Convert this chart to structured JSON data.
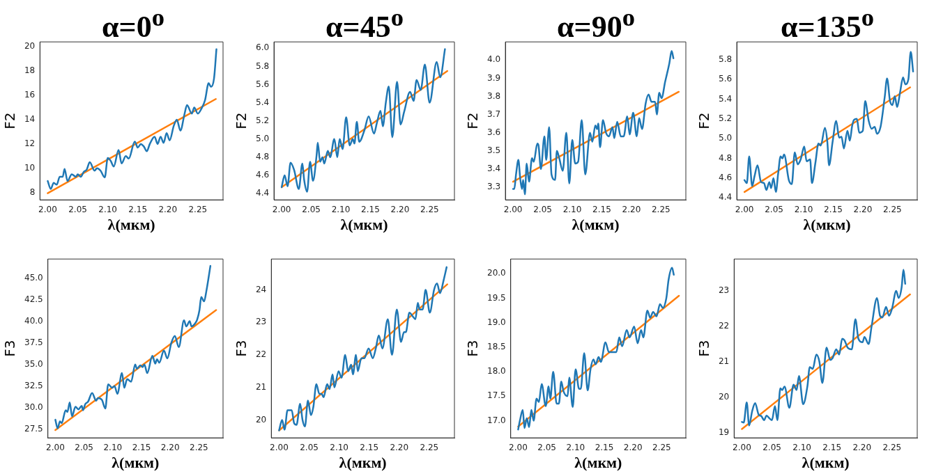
{
  "chart_data": [
    {
      "type": "line",
      "title": "α=0$^{o}$",
      "xlabel": "λ(мкм)",
      "ylabel": "F2",
      "marker": "none",
      "line_style": "solid",
      "xlim": [
        1.987,
        2.292
      ],
      "xticks": [
        {
          "value": 2,
          "label": "2.00"
        },
        {
          "value": 2.05,
          "label": "2.05"
        },
        {
          "value": 2.1,
          "label": "2.10"
        },
        {
          "value": 2.15,
          "label": "2.15"
        },
        {
          "value": 2.2,
          "label": "2.20"
        },
        {
          "value": 2.25,
          "label": "2.25"
        }
      ],
      "ylim": [
        7.4,
        20.4
      ],
      "yticks": [
        8,
        10,
        12,
        14,
        16,
        18,
        20
      ],
      "series": [
        {
          "color": "#1f77b4",
          "x": [
            2.0,
            2.005,
            2.01,
            2.015,
            2.02,
            2.025,
            2.028,
            2.033,
            2.04,
            2.047,
            2.05,
            2.055,
            2.06,
            2.065,
            2.07,
            2.078,
            2.082,
            2.088,
            2.095,
            2.1,
            2.105,
            2.11,
            2.118,
            2.123,
            2.13,
            2.135,
            2.145,
            2.15,
            2.155,
            2.16,
            2.165,
            2.17,
            2.178,
            2.183,
            2.188,
            2.193,
            2.198,
            2.203,
            2.21,
            2.215,
            2.221,
            2.228,
            2.232,
            2.24,
            2.244,
            2.25,
            2.256,
            2.262,
            2.268,
            2.272,
            2.277,
            2.281
          ],
          "values": [
            8.95,
            8.3,
            8.8,
            8.65,
            9.3,
            9.3,
            9.95,
            8.95,
            9.5,
            9.3,
            9.5,
            9.3,
            9.7,
            9.9,
            10.5,
            9.8,
            10.0,
            9.8,
            9.25,
            10.85,
            10.6,
            10.15,
            11.5,
            10.4,
            11.0,
            10.8,
            12.2,
            11.7,
            12.0,
            11.8,
            11.4,
            12.0,
            12.6,
            12.0,
            12.6,
            12.1,
            12.9,
            12.3,
            13.5,
            14.0,
            13.1,
            14.5,
            15.2,
            14.5,
            15.0,
            14.5,
            14.9,
            15.6,
            17.0,
            16.7,
            17.4,
            19.8
          ]
        },
        {
          "color": "#ff7f0e",
          "x": [
            2.0,
            2.28
          ],
          "values": [
            7.95,
            15.7
          ]
        }
      ]
    },
    {
      "type": "line",
      "title": "α=45$^{o}$",
      "xlabel": "λ(мкм)",
      "ylabel": "F2",
      "marker": "none",
      "line_style": "solid",
      "xlim": [
        1.987,
        2.292
      ],
      "xticks": [
        {
          "value": 2,
          "label": "2.00"
        },
        {
          "value": 2.05,
          "label": "2.05"
        },
        {
          "value": 2.1,
          "label": "2.10"
        },
        {
          "value": 2.15,
          "label": "2.15"
        },
        {
          "value": 2.2,
          "label": "2.20"
        },
        {
          "value": 2.25,
          "label": "2.25"
        }
      ],
      "ylim": [
        4.33,
        6.07
      ],
      "yticks": [
        4.4,
        4.6,
        4.8,
        {
          "value": 5,
          "label": "5.0"
        },
        5.2,
        5.4,
        5.6,
        5.8,
        {
          "value": 6,
          "label": "6.0"
        }
      ],
      "series": [
        {
          "color": "#1f77b4",
          "x": [
            2.0,
            2.005,
            2.01,
            2.015,
            2.021,
            2.029,
            2.035,
            2.038,
            2.043,
            2.048,
            2.053,
            2.059,
            2.061,
            2.065,
            2.069,
            2.072,
            2.078,
            2.082,
            2.089,
            2.094,
            2.098,
            2.103,
            2.109,
            2.115,
            2.12,
            2.123,
            2.127,
            2.131,
            2.14,
            2.147,
            2.156,
            2.161,
            2.167,
            2.171,
            2.176,
            2.181,
            2.187,
            2.195,
            2.201,
            2.207,
            2.217,
            2.223,
            2.228,
            2.235,
            2.242,
            2.25,
            2.262,
            2.268,
            2.276
          ],
          "values": [
            4.47,
            4.6,
            4.48,
            4.74,
            4.66,
            4.45,
            4.73,
            4.55,
            4.42,
            4.75,
            4.54,
            4.82,
            4.96,
            4.75,
            4.8,
            4.73,
            4.87,
            4.8,
            5.0,
            4.8,
            5.0,
            4.89,
            5.24,
            4.93,
            5.0,
            4.95,
            5.19,
            4.97,
            5.1,
            5.25,
            5.06,
            5.18,
            5.31,
            5.14,
            5.4,
            5.58,
            5.02,
            5.63,
            5.16,
            5.3,
            5.52,
            5.42,
            5.65,
            5.54,
            5.82,
            5.4,
            5.85,
            5.68,
            5.99
          ]
        },
        {
          "color": "#ff7f0e",
          "x": [
            2.0,
            2.28
          ],
          "values": [
            4.47,
            5.75
          ]
        }
      ]
    },
    {
      "type": "line",
      "title": "α=90$^{o}$",
      "xlabel": "λ(мкм)",
      "ylabel": "F2",
      "marker": "none",
      "line_style": "solid",
      "xlim": [
        1.987,
        2.292
      ],
      "xticks": [
        {
          "value": 2,
          "label": "2.00"
        },
        {
          "value": 2.05,
          "label": "2.05"
        },
        {
          "value": 2.1,
          "label": "2.10"
        },
        {
          "value": 2.15,
          "label": "2.15"
        },
        {
          "value": 2.2,
          "label": "2.20"
        },
        {
          "value": 2.25,
          "label": "2.25"
        }
      ],
      "ylim": [
        3.23,
        4.1
      ],
      "yticks": [
        3.3,
        3.4,
        3.5,
        3.6,
        3.7,
        3.8,
        3.9,
        {
          "value": 4,
          "label": "4.0"
        }
      ],
      "series": [
        {
          "color": "#1f77b4",
          "x": [
            2.0,
            2.002,
            2.005,
            2.009,
            2.012,
            2.015,
            2.017,
            2.02,
            2.023,
            2.027,
            2.032,
            2.035,
            2.041,
            2.043,
            2.047,
            2.053,
            2.056,
            2.061,
            2.065,
            2.071,
            2.074,
            2.078,
            2.084,
            2.09,
            2.095,
            2.1,
            2.105,
            2.11,
            2.116,
            2.122,
            2.13,
            2.134,
            2.139,
            2.142,
            2.144,
            2.147,
            2.152,
            2.157,
            2.162,
            2.168,
            2.171,
            2.176,
            2.182,
            2.187,
            2.193,
            2.197,
            2.203,
            2.209,
            2.213,
            2.218,
            2.224,
            2.229,
            2.234,
            2.24,
            2.243,
            2.247,
            2.251,
            2.257,
            2.264,
            2.268,
            2.271
          ],
          "values": [
            3.29,
            3.29,
            3.37,
            3.45,
            3.35,
            3.29,
            3.34,
            3.26,
            3.43,
            3.33,
            3.46,
            3.44,
            3.54,
            3.53,
            3.4,
            3.58,
            3.45,
            3.63,
            3.37,
            3.34,
            3.5,
            3.46,
            3.39,
            3.6,
            3.32,
            3.56,
            3.43,
            3.44,
            3.67,
            3.37,
            3.6,
            3.55,
            3.64,
            3.62,
            3.65,
            3.52,
            3.67,
            3.6,
            3.58,
            3.63,
            3.57,
            3.66,
            3.58,
            3.58,
            3.69,
            3.59,
            3.71,
            3.58,
            3.68,
            3.62,
            3.76,
            3.81,
            3.77,
            3.77,
            3.7,
            3.82,
            3.79,
            3.88,
            3.98,
            4.05,
            4.01
          ]
        },
        {
          "color": "#ff7f0e",
          "x": [
            2.0,
            2.28
          ],
          "values": [
            3.33,
            3.825
          ]
        }
      ]
    },
    {
      "type": "line",
      "title": "α=135$^{o}$",
      "xlabel": "λ(мкм)",
      "ylabel": "F2",
      "marker": "none",
      "line_style": "solid",
      "xlim": [
        1.987,
        2.292
      ],
      "xticks": [
        {
          "value": 2,
          "label": "2.00"
        },
        {
          "value": 2.05,
          "label": "2.05"
        },
        {
          "value": 2.1,
          "label": "2.10"
        },
        {
          "value": 2.15,
          "label": "2.15"
        },
        {
          "value": 2.2,
          "label": "2.20"
        },
        {
          "value": 2.25,
          "label": "2.25"
        }
      ],
      "ylim": [
        4.38,
        5.98
      ],
      "yticks": [
        4.4,
        4.6,
        4.8,
        {
          "value": 5,
          "label": "5.0"
        },
        5.2,
        5.4,
        5.6,
        5.8
      ],
      "series": [
        {
          "color": "#1f77b4",
          "x": [
            2.0,
            2.004,
            2.008,
            2.013,
            2.017,
            2.022,
            2.028,
            2.033,
            2.037,
            2.042,
            2.045,
            2.049,
            2.053,
            2.057,
            2.061,
            2.064,
            2.067,
            2.075,
            2.08,
            2.085,
            2.09,
            2.095,
            2.101,
            2.105,
            2.111,
            2.114,
            2.12,
            2.125,
            2.129,
            2.136,
            2.14,
            2.143,
            2.149,
            2.155,
            2.16,
            2.164,
            2.168,
            2.174,
            2.178,
            2.182,
            2.185,
            2.19,
            2.194,
            2.2,
            2.204,
            2.21,
            2.215,
            2.22,
            2.224,
            2.23,
            2.237,
            2.241,
            2.246,
            2.25,
            2.254,
            2.258,
            2.263,
            2.268,
            2.272,
            2.277,
            2.281,
            2.285
          ],
          "values": [
            4.58,
            4.55,
            4.82,
            4.52,
            4.62,
            4.73,
            4.56,
            4.55,
            4.48,
            4.56,
            4.5,
            4.6,
            4.46,
            4.65,
            4.82,
            4.8,
            4.84,
            4.58,
            4.54,
            4.86,
            4.74,
            4.79,
            4.92,
            4.77,
            4.79,
            4.55,
            4.76,
            4.95,
            4.93,
            5.11,
            4.97,
            4.73,
            4.97,
            5.18,
            5.01,
            5.02,
            4.9,
            5.08,
            4.98,
            5.13,
            5.19,
            5.2,
            5.06,
            5.08,
            5.38,
            5.18,
            5.1,
            5.12,
            5.05,
            5.12,
            5.42,
            5.61,
            5.38,
            5.34,
            5.43,
            5.32,
            5.47,
            5.62,
            5.55,
            5.6,
            5.88,
            5.68
          ]
        },
        {
          "color": "#ff7f0e",
          "x": [
            2.0,
            2.28
          ],
          "values": [
            4.46,
            5.52
          ]
        }
      ]
    },
    {
      "type": "line",
      "xlabel": "λ(мкм)",
      "ylabel": "F3",
      "marker": "none",
      "line_style": "solid",
      "xlim": [
        1.987,
        2.292
      ],
      "xticks": [
        {
          "value": 2,
          "label": "2.00"
        },
        {
          "value": 2.05,
          "label": "2.05"
        },
        {
          "value": 2.1,
          "label": "2.10"
        },
        {
          "value": 2.15,
          "label": "2.15"
        },
        {
          "value": 2.2,
          "label": "2.20"
        },
        {
          "value": 2.25,
          "label": "2.25"
        }
      ],
      "ylim": [
        26.5,
        47.2
      ],
      "yticks": [
        27.5,
        {
          "value": 30,
          "label": "30.0"
        },
        32.5,
        {
          "value": 35,
          "label": "35.0"
        },
        37.5,
        {
          "value": 40,
          "label": "40.0"
        },
        42.5,
        {
          "value": 45,
          "label": "45.0"
        }
      ],
      "series": [
        {
          "color": "#1f77b4",
          "x": [
            2.0,
            2.004,
            2.008,
            2.011,
            2.018,
            2.021,
            2.025,
            2.029,
            2.035,
            2.04,
            2.046,
            2.048,
            2.052,
            2.057,
            2.064,
            2.071,
            2.074,
            2.081,
            2.087,
            2.092,
            2.099,
            2.103,
            2.108,
            2.116,
            2.12,
            2.125,
            2.132,
            2.139,
            2.142,
            2.148,
            2.152,
            2.155,
            2.16,
            2.169,
            2.174,
            2.177,
            2.181,
            2.189,
            2.195,
            2.202,
            2.208,
            2.215,
            2.224,
            2.228,
            2.234,
            2.237,
            2.244,
            2.247,
            2.251,
            2.254,
            2.259,
            2.263,
            2.27
          ],
          "values": [
            28.6,
            27.6,
            28.4,
            28.2,
            29.7,
            29.5,
            30.6,
            29.0,
            30.1,
            29.8,
            30.2,
            29.7,
            30.4,
            30.7,
            31.7,
            30.8,
            31.1,
            30.9,
            29.9,
            32.7,
            32.3,
            32.5,
            31.6,
            34.0,
            32.3,
            33.3,
            33.0,
            35.0,
            34.5,
            34.9,
            34.7,
            35.0,
            34.0,
            36.0,
            35.1,
            35.6,
            35.2,
            36.6,
            35.7,
            37.5,
            38.3,
            37.0,
            40.1,
            39.4,
            40.0,
            39.4,
            39.8,
            40.2,
            41.3,
            42.8,
            42.3,
            43.5,
            46.4
          ]
        },
        {
          "color": "#ff7f0e",
          "x": [
            2.0,
            2.28
          ],
          "values": [
            27.4,
            41.3
          ]
        }
      ]
    },
    {
      "type": "line",
      "xlabel": "λ(мкм)",
      "ylabel": "F3",
      "marker": "none",
      "line_style": "solid",
      "xlim": [
        1.987,
        2.292
      ],
      "xticks": [
        {
          "value": 2,
          "label": "2.00"
        },
        {
          "value": 2.05,
          "label": "2.05"
        },
        {
          "value": 2.1,
          "label": "2.10"
        },
        {
          "value": 2.15,
          "label": "2.15"
        },
        {
          "value": 2.2,
          "label": "2.20"
        },
        {
          "value": 2.25,
          "label": "2.25"
        }
      ],
      "ylim": [
        19.45,
        24.95
      ],
      "yticks": [
        20,
        21,
        22,
        23,
        24
      ],
      "series": [
        {
          "color": "#1f77b4",
          "x": [
            2.0,
            2.005,
            2.009,
            2.014,
            2.021,
            2.025,
            2.029,
            2.035,
            2.039,
            2.043,
            2.048,
            2.053,
            2.057,
            2.062,
            2.067,
            2.071,
            2.074,
            2.08,
            2.084,
            2.089,
            2.092,
            2.099,
            2.104,
            2.11,
            2.115,
            2.12,
            2.123,
            2.128,
            2.131,
            2.137,
            2.142,
            2.149,
            2.156,
            2.161,
            2.166,
            2.172,
            2.181,
            2.188,
            2.196,
            2.203,
            2.208,
            2.211,
            2.217,
            2.222,
            2.227,
            2.231,
            2.234,
            2.239,
            2.244,
            2.251,
            2.258,
            2.263,
            2.268,
            2.274,
            2.279
          ],
          "values": [
            19.68,
            20.0,
            19.7,
            20.3,
            20.3,
            19.9,
            19.85,
            20.5,
            20.0,
            19.8,
            20.6,
            20.15,
            20.4,
            21.1,
            20.8,
            20.8,
            20.7,
            21.1,
            20.95,
            21.4,
            21.0,
            21.5,
            21.3,
            22.0,
            21.5,
            21.7,
            21.4,
            22.0,
            21.5,
            21.9,
            21.9,
            22.2,
            21.9,
            22.2,
            22.6,
            22.2,
            23.1,
            22.0,
            23.4,
            22.4,
            22.7,
            22.7,
            23.3,
            23.2,
            23.1,
            23.6,
            23.4,
            23.4,
            24.0,
            23.3,
            24.0,
            24.2,
            23.9,
            24.3,
            24.7
          ]
        },
        {
          "color": "#ff7f0e",
          "x": [
            2.0,
            2.28
          ],
          "values": [
            19.68,
            24.17
          ]
        }
      ]
    },
    {
      "type": "line",
      "xlabel": "λ(мкм)",
      "ylabel": "F3",
      "marker": "none",
      "line_style": "solid",
      "xlim": [
        1.987,
        2.292
      ],
      "xticks": [
        {
          "value": 2,
          "label": "2.00"
        },
        {
          "value": 2.05,
          "label": "2.05"
        },
        {
          "value": 2.1,
          "label": "2.10"
        },
        {
          "value": 2.15,
          "label": "2.15"
        },
        {
          "value": 2.2,
          "label": "2.20"
        },
        {
          "value": 2.25,
          "label": "2.25"
        }
      ],
      "ylim": [
        16.65,
        20.3
      ],
      "yticks": [
        {
          "value": 17,
          "label": "17.0"
        },
        17.5,
        {
          "value": 18,
          "label": "18.0"
        },
        18.5,
        {
          "value": 19,
          "label": "19.0"
        },
        19.5,
        {
          "value": 20,
          "label": "20.0"
        }
      ],
      "series": [
        {
          "color": "#1f77b4",
          "x": [
            2.0,
            2.003,
            2.008,
            2.011,
            2.015,
            2.019,
            2.023,
            2.027,
            2.032,
            2.036,
            2.041,
            2.048,
            2.053,
            2.056,
            2.061,
            2.067,
            2.071,
            2.075,
            2.079,
            2.086,
            2.089,
            2.095,
            2.1,
            2.106,
            2.109,
            2.115,
            2.121,
            2.126,
            2.131,
            2.135,
            2.14,
            2.144,
            2.152,
            2.158,
            2.163,
            2.171,
            2.176,
            2.181,
            2.189,
            2.194,
            2.202,
            2.208,
            2.214,
            2.218,
            2.225,
            2.23,
            2.235,
            2.241,
            2.247,
            2.252,
            2.258,
            2.262,
            2.268,
            2.271
          ],
          "values": [
            16.82,
            17.0,
            17.22,
            16.85,
            17.05,
            16.87,
            17.22,
            17.0,
            17.45,
            17.38,
            17.75,
            17.3,
            17.7,
            17.45,
            18.0,
            17.35,
            17.35,
            17.8,
            17.6,
            17.5,
            17.88,
            17.28,
            18.05,
            17.65,
            17.65,
            18.38,
            17.62,
            18.05,
            18.25,
            18.15,
            18.3,
            18.2,
            18.6,
            18.4,
            18.4,
            18.4,
            18.7,
            18.52,
            18.85,
            18.7,
            18.92,
            18.58,
            18.85,
            18.7,
            19.25,
            19.1,
            19.22,
            19.13,
            19.38,
            19.3,
            19.5,
            19.88,
            20.12,
            19.98
          ]
        },
        {
          "color": "#ff7f0e",
          "x": [
            2.0,
            2.28
          ],
          "values": [
            16.88,
            19.55
          ]
        }
      ]
    },
    {
      "type": "line",
      "xlabel": "λ(мкм)",
      "ylabel": "F3",
      "marker": "none",
      "line_style": "solid",
      "xlim": [
        1.987,
        2.292
      ],
      "xticks": [
        {
          "value": 2,
          "label": "2.00"
        },
        {
          "value": 2.05,
          "label": "2.05"
        },
        {
          "value": 2.1,
          "label": "2.10"
        },
        {
          "value": 2.15,
          "label": "2.15"
        },
        {
          "value": 2.2,
          "label": "2.20"
        },
        {
          "value": 2.25,
          "label": "2.25"
        }
      ],
      "ylim": [
        18.85,
        23.9
      ],
      "yticks": [
        19,
        20,
        21,
        22,
        23
      ],
      "series": [
        {
          "color": "#1f77b4",
          "x": [
            2.0,
            2.003,
            2.008,
            2.012,
            2.017,
            2.022,
            2.028,
            2.032,
            2.037,
            2.041,
            2.046,
            2.05,
            2.055,
            2.059,
            2.064,
            2.067,
            2.071,
            2.079,
            2.086,
            2.091,
            2.095,
            2.102,
            2.109,
            2.113,
            2.118,
            2.124,
            2.129,
            2.134,
            2.141,
            2.147,
            2.151,
            2.157,
            2.162,
            2.167,
            2.171,
            2.176,
            2.183,
            2.189,
            2.194,
            2.201,
            2.204,
            2.211,
            2.216,
            2.225,
            2.23,
            2.234,
            2.24,
            2.245,
            2.25,
            2.257,
            2.261,
            2.266,
            2.269,
            2.272
          ],
          "values": [
            19.3,
            19.28,
            19.85,
            19.2,
            19.6,
            19.83,
            19.5,
            19.47,
            19.35,
            19.48,
            19.4,
            19.35,
            19.75,
            19.35,
            20.25,
            20.2,
            20.3,
            19.7,
            20.35,
            20.2,
            20.6,
            19.8,
            20.3,
            20.85,
            20.8,
            21.2,
            21.0,
            20.4,
            21.4,
            21.05,
            21.1,
            21.35,
            21.2,
            21.65,
            21.6,
            21.4,
            21.35,
            22.2,
            21.65,
            21.55,
            21.7,
            21.5,
            22.0,
            22.8,
            22.3,
            22.25,
            22.55,
            22.3,
            22.5,
            23.0,
            22.8,
            23.1,
            23.6,
            23.2
          ]
        },
        {
          "color": "#ff7f0e",
          "x": [
            2.0,
            2.28
          ],
          "values": [
            19.1,
            22.9
          ]
        }
      ]
    }
  ]
}
